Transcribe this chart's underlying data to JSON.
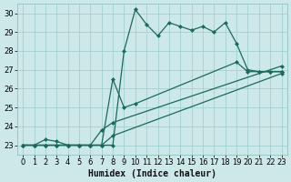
{
  "xlabel": "Humidex (Indice chaleur)",
  "bg_color": "#cce8e8",
  "line_color": "#1a6b5a",
  "grid_color": "#99cccc",
  "xlim": [
    -0.5,
    23.5
  ],
  "ylim": [
    22.5,
    30.5
  ],
  "xticks": [
    0,
    1,
    2,
    3,
    4,
    5,
    6,
    7,
    8,
    9,
    10,
    11,
    12,
    13,
    14,
    15,
    16,
    17,
    18,
    19,
    20,
    21,
    22,
    23
  ],
  "yticks": [
    23,
    24,
    25,
    26,
    27,
    28,
    29,
    30
  ],
  "line1_x": [
    0,
    1,
    2,
    3,
    4,
    5,
    6,
    7,
    8,
    9,
    10,
    11,
    12,
    13,
    14,
    15,
    16,
    17,
    18,
    19,
    20,
    21,
    22,
    23
  ],
  "line1_y": [
    23,
    23,
    23.3,
    23.2,
    23,
    23,
    23,
    23,
    23,
    28.0,
    30.2,
    29.4,
    28.8,
    29.5,
    29.3,
    29.1,
    29.3,
    29.0,
    29.5,
    28.4,
    27.0,
    26.9,
    26.9,
    26.9
  ],
  "line2_x": [
    0,
    1,
    2,
    3,
    4,
    5,
    6,
    7,
    8,
    9,
    10,
    19,
    20,
    21,
    22,
    23
  ],
  "line2_y": [
    23,
    23,
    23,
    23,
    23,
    23,
    23,
    23,
    26.5,
    25.0,
    25.2,
    27.4,
    26.9,
    26.9,
    26.9,
    26.9
  ],
  "line3_x": [
    0,
    1,
    2,
    3,
    4,
    5,
    6,
    7,
    8,
    23
  ],
  "line3_y": [
    23,
    23,
    23,
    23,
    23,
    23,
    23,
    23.8,
    24.2,
    27.2
  ],
  "line4_x": [
    0,
    1,
    2,
    3,
    4,
    5,
    6,
    7,
    8,
    23
  ],
  "line4_y": [
    23,
    23,
    23,
    23,
    23,
    23,
    23,
    23,
    23.5,
    26.8
  ],
  "line_width": 0.9,
  "marker": "D",
  "marker_size": 2.0,
  "tick_fontsize": 6,
  "xlabel_fontsize": 7
}
